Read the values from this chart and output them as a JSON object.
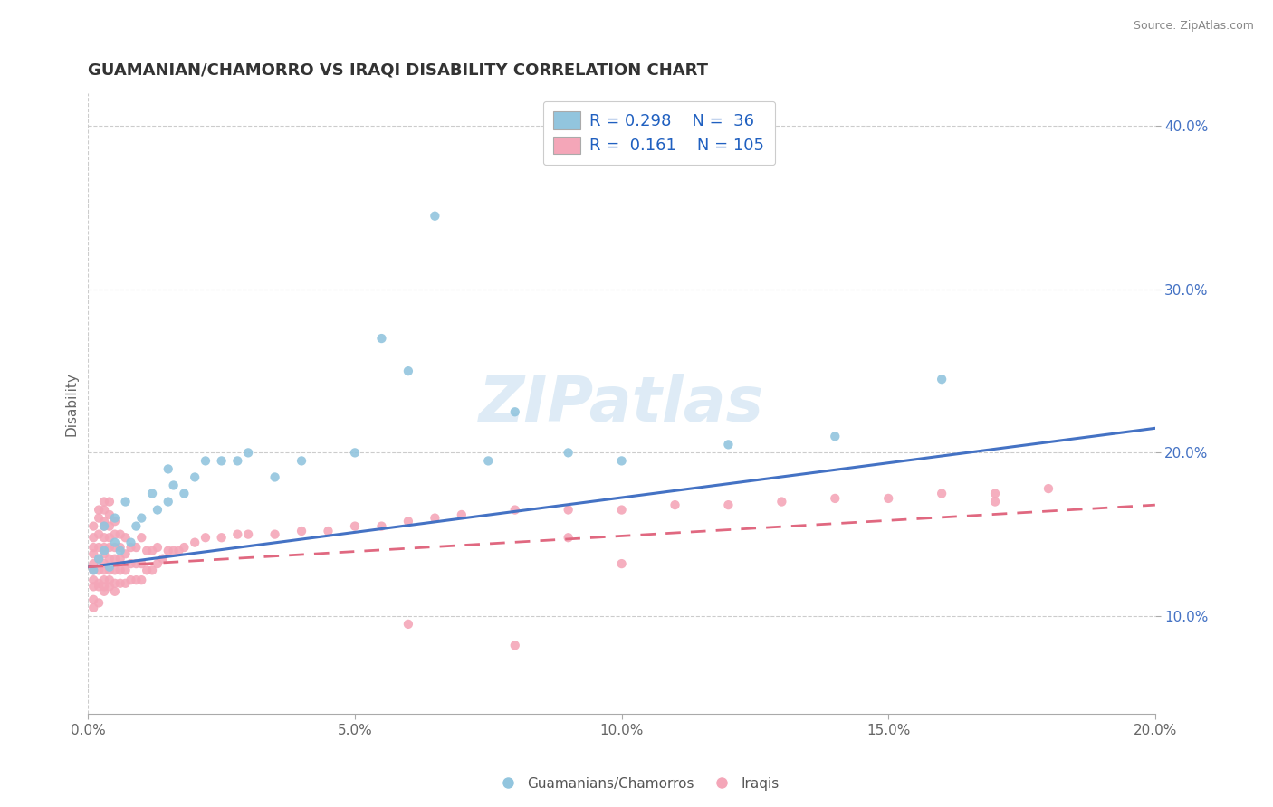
{
  "title": "GUAMANIAN/CHAMORRO VS IRAQI DISABILITY CORRELATION CHART",
  "source": "Source: ZipAtlas.com",
  "ylabel": "Disability",
  "xlim": [
    0.0,
    0.2
  ],
  "ylim": [
    0.04,
    0.42
  ],
  "xtick_labels": [
    "0.0%",
    "5.0%",
    "10.0%",
    "15.0%",
    "20.0%"
  ],
  "xtick_values": [
    0.0,
    0.05,
    0.1,
    0.15,
    0.2
  ],
  "ytick_labels": [
    "10.0%",
    "20.0%",
    "30.0%",
    "40.0%"
  ],
  "ytick_values": [
    0.1,
    0.2,
    0.3,
    0.4
  ],
  "legend1_label": "Guamanians/Chamorros",
  "legend2_label": "Iraqis",
  "R1": "0.298",
  "N1": "36",
  "R2": "0.161",
  "N2": "105",
  "color1": "#92c5de",
  "color2": "#f4a6b8",
  "line_color1": "#4472c4",
  "line_color2": "#e06880",
  "background_color": "#ffffff",
  "grid_color": "#cccccc",
  "watermark": "ZIPatlas",
  "scatter1_x": [
    0.001,
    0.002,
    0.003,
    0.003,
    0.004,
    0.005,
    0.005,
    0.006,
    0.007,
    0.008,
    0.009,
    0.01,
    0.012,
    0.013,
    0.015,
    0.015,
    0.016,
    0.018,
    0.02,
    0.022,
    0.025,
    0.028,
    0.03,
    0.035,
    0.04,
    0.05,
    0.055,
    0.06,
    0.065,
    0.075,
    0.08,
    0.09,
    0.1,
    0.12,
    0.14,
    0.16
  ],
  "scatter1_y": [
    0.128,
    0.135,
    0.14,
    0.155,
    0.13,
    0.145,
    0.16,
    0.14,
    0.17,
    0.145,
    0.155,
    0.16,
    0.175,
    0.165,
    0.17,
    0.19,
    0.18,
    0.175,
    0.185,
    0.195,
    0.195,
    0.195,
    0.2,
    0.185,
    0.195,
    0.2,
    0.27,
    0.25,
    0.345,
    0.195,
    0.225,
    0.2,
    0.195,
    0.205,
    0.21,
    0.245
  ],
  "scatter2_x": [
    0.001,
    0.001,
    0.001,
    0.001,
    0.001,
    0.001,
    0.001,
    0.001,
    0.001,
    0.001,
    0.002,
    0.002,
    0.002,
    0.002,
    0.002,
    0.002,
    0.002,
    0.002,
    0.002,
    0.003,
    0.003,
    0.003,
    0.003,
    0.003,
    0.003,
    0.003,
    0.003,
    0.003,
    0.003,
    0.003,
    0.003,
    0.004,
    0.004,
    0.004,
    0.004,
    0.004,
    0.004,
    0.004,
    0.004,
    0.004,
    0.005,
    0.005,
    0.005,
    0.005,
    0.005,
    0.005,
    0.005,
    0.006,
    0.006,
    0.006,
    0.006,
    0.006,
    0.007,
    0.007,
    0.007,
    0.007,
    0.008,
    0.008,
    0.008,
    0.009,
    0.009,
    0.009,
    0.01,
    0.01,
    0.01,
    0.011,
    0.011,
    0.012,
    0.012,
    0.013,
    0.013,
    0.014,
    0.015,
    0.016,
    0.017,
    0.018,
    0.02,
    0.022,
    0.025,
    0.028,
    0.03,
    0.035,
    0.04,
    0.045,
    0.05,
    0.055,
    0.06,
    0.065,
    0.07,
    0.08,
    0.09,
    0.1,
    0.11,
    0.12,
    0.13,
    0.14,
    0.15,
    0.16,
    0.17,
    0.18,
    0.06,
    0.08,
    0.09,
    0.1,
    0.17
  ],
  "scatter2_y": [
    0.128,
    0.132,
    0.138,
    0.122,
    0.118,
    0.142,
    0.148,
    0.155,
    0.11,
    0.105,
    0.12,
    0.128,
    0.135,
    0.142,
    0.15,
    0.118,
    0.108,
    0.16,
    0.165,
    0.115,
    0.118,
    0.122,
    0.128,
    0.132,
    0.138,
    0.142,
    0.148,
    0.155,
    0.158,
    0.165,
    0.17,
    0.118,
    0.122,
    0.128,
    0.135,
    0.142,
    0.148,
    0.155,
    0.162,
    0.17,
    0.115,
    0.12,
    0.128,
    0.135,
    0.142,
    0.15,
    0.158,
    0.12,
    0.128,
    0.135,
    0.142,
    0.15,
    0.12,
    0.128,
    0.138,
    0.148,
    0.122,
    0.132,
    0.142,
    0.122,
    0.132,
    0.142,
    0.122,
    0.132,
    0.148,
    0.128,
    0.14,
    0.128,
    0.14,
    0.132,
    0.142,
    0.135,
    0.14,
    0.14,
    0.14,
    0.142,
    0.145,
    0.148,
    0.148,
    0.15,
    0.15,
    0.15,
    0.152,
    0.152,
    0.155,
    0.155,
    0.158,
    0.16,
    0.162,
    0.165,
    0.165,
    0.165,
    0.168,
    0.168,
    0.17,
    0.172,
    0.172,
    0.175,
    0.175,
    0.178,
    0.095,
    0.082,
    0.148,
    0.132,
    0.17
  ]
}
